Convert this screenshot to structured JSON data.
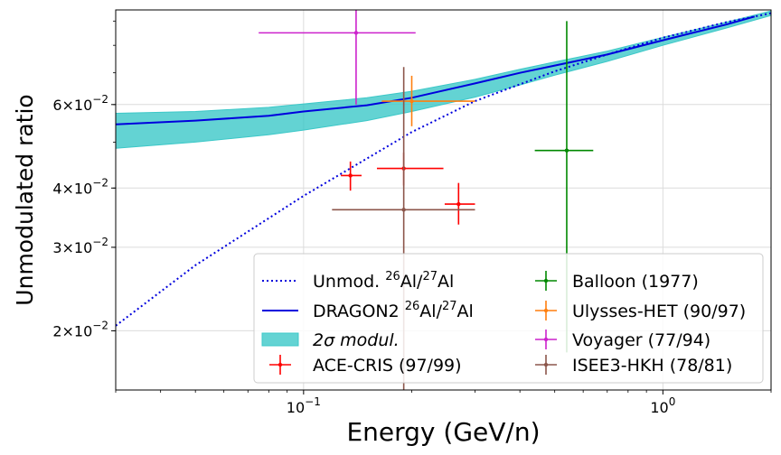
{
  "chart_data": {
    "type": "scatter",
    "xlabel": "Energy (GeV/n)",
    "ylabel": "Unmodulated ratio",
    "xscale": "log",
    "yscale": "log",
    "xlim": [
      0.03,
      2.0
    ],
    "ylim": [
      0.015,
      0.095
    ],
    "grid": true,
    "legend_placement": "lower-right",
    "x_ticks": [
      {
        "value": 0.1,
        "base": "10",
        "exp": "−1"
      },
      {
        "value": 1.0,
        "base": "10",
        "exp": "0"
      }
    ],
    "y_ticks": [
      {
        "value": 0.02,
        "mantissa": "2",
        "base": "10",
        "exp": "−2"
      },
      {
        "value": 0.03,
        "mantissa": "3",
        "base": "10",
        "exp": "−2"
      },
      {
        "value": 0.04,
        "mantissa": "4",
        "base": "10",
        "exp": "−2"
      },
      {
        "value": 0.06,
        "mantissa": "6",
        "base": "10",
        "exp": "−2"
      }
    ],
    "lines": [
      {
        "name": "Unmod. 26Al/27Al",
        "color": "#0000dd",
        "style": "dotted",
        "x": [
          0.03,
          0.05,
          0.1,
          0.2,
          0.3,
          0.5,
          0.7,
          1.0,
          1.5,
          2.0
        ],
        "y": [
          0.0205,
          0.0275,
          0.0385,
          0.0525,
          0.061,
          0.0705,
          0.0765,
          0.083,
          0.0895,
          0.0935
        ]
      },
      {
        "name": "DRAGON2 26Al/27Al",
        "color": "#0000dd",
        "style": "solid",
        "x": [
          0.03,
          0.05,
          0.08,
          0.1,
          0.15,
          0.2,
          0.3,
          0.4,
          0.5,
          0.7,
          1.0,
          1.5,
          1.8
        ],
        "y": [
          0.0545,
          0.0555,
          0.0568,
          0.058,
          0.0598,
          0.062,
          0.0665,
          0.07,
          0.0725,
          0.0765,
          0.082,
          0.0885,
          0.092
        ]
      }
    ],
    "band": {
      "name": "2σ modul.",
      "color": "#3cc8c8",
      "x": [
        0.03,
        0.05,
        0.08,
        0.1,
        0.15,
        0.2,
        0.3,
        0.4,
        0.5,
        0.7,
        1.0,
        1.5,
        2.0
      ],
      "upper": [
        0.0575,
        0.058,
        0.0592,
        0.0602,
        0.062,
        0.064,
        0.0678,
        0.0712,
        0.0738,
        0.0778,
        0.0832,
        0.0895,
        0.0945
      ],
      "lower": [
        0.0485,
        0.05,
        0.0518,
        0.053,
        0.0555,
        0.058,
        0.0622,
        0.066,
        0.0692,
        0.074,
        0.08,
        0.087,
        0.0925
      ]
    },
    "series": [
      {
        "name": "ACE-CRIS (97/99)",
        "color": "#ff0000",
        "points": [
          {
            "x": 0.135,
            "y": 0.0425,
            "xlo": 0.127,
            "xhi": 0.145,
            "ylo": 0.0395,
            "yhi": 0.0455
          },
          {
            "x": 0.19,
            "y": 0.044,
            "xlo": 0.16,
            "xhi": 0.245,
            "ylo": 0.0405,
            "yhi": 0.0475
          },
          {
            "x": 0.27,
            "y": 0.037,
            "xlo": 0.247,
            "xhi": 0.3,
            "ylo": 0.0335,
            "yhi": 0.041
          }
        ]
      },
      {
        "name": "Balloon (1977)",
        "color": "#008800",
        "points": [
          {
            "x": 0.54,
            "y": 0.048,
            "xlo": 0.44,
            "xhi": 0.64,
            "ylo": 0.018,
            "yhi": 0.09
          }
        ]
      },
      {
        "name": "Ulysses-HET (90/97)",
        "color": "#ff7f0e",
        "points": [
          {
            "x": 0.2,
            "y": 0.061,
            "xlo": 0.165,
            "xhi": 0.3,
            "ylo": 0.054,
            "yhi": 0.069
          }
        ]
      },
      {
        "name": "Voyager (77/94)",
        "color": "#cc22cc",
        "points": [
          {
            "x": 0.14,
            "y": 0.085,
            "xlo": 0.075,
            "xhi": 0.205,
            "ylo": 0.06,
            "yhi": 0.1
          }
        ]
      },
      {
        "name": "ISEE3-HKH (78/81)",
        "color": "#8c564b",
        "points": [
          {
            "x": 0.19,
            "y": 0.036,
            "xlo": 0.12,
            "xhi": 0.3,
            "ylo": 0.014,
            "yhi": 0.072
          }
        ]
      }
    ],
    "legend": [
      {
        "kind": "dotted",
        "color": "#0000dd",
        "pre": "Unmod. ",
        "sup1": "26",
        "mid": "Al/",
        "sup2": "27",
        "post": "Al"
      },
      {
        "kind": "solid",
        "color": "#0000dd",
        "pre": "DRAGON2 ",
        "sup1": "26",
        "mid": "Al/",
        "sup2": "27",
        "post": "Al"
      },
      {
        "kind": "band",
        "color": "#3cc8c8",
        "text": "2σ modul."
      },
      {
        "kind": "errorbar",
        "color": "#ff0000",
        "text": "ACE-CRIS (97/99)"
      },
      {
        "kind": "errorbar",
        "color": "#008800",
        "text": "Balloon (1977)"
      },
      {
        "kind": "errorbar",
        "color": "#ff7f0e",
        "text": "Ulysses-HET (90/97)"
      },
      {
        "kind": "errorbar",
        "color": "#cc22cc",
        "text": "Voyager (77/94)"
      },
      {
        "kind": "errorbar",
        "color": "#8c564b",
        "text": "ISEE3-HKH (78/81)"
      }
    ]
  }
}
